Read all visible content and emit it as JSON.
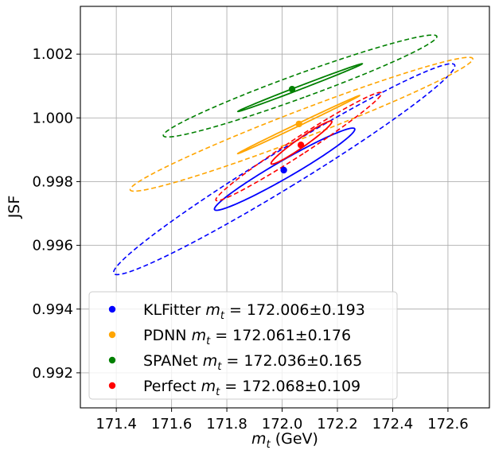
{
  "chart_data": {
    "type": "scatter",
    "xlabel_var": "m",
    "xlabel_sub": "t",
    "xlabel_unit": " (GeV)",
    "ylabel": "JSF",
    "xlim": [
      171.27,
      172.75
    ],
    "ylim": [
      0.9909,
      1.0035
    ],
    "x_ticks": [
      171.4,
      171.6,
      171.8,
      172.0,
      172.2,
      172.4,
      172.6
    ],
    "x_tick_labels": [
      "171.4",
      "171.6",
      "171.8",
      "172.0",
      "172.2",
      "172.4",
      "172.6"
    ],
    "y_ticks": [
      0.992,
      0.994,
      0.996,
      0.998,
      1.0,
      1.002
    ],
    "y_tick_labels": [
      "0.992",
      "0.994",
      "0.996",
      "0.998",
      "1.000",
      "1.002"
    ],
    "grid": true,
    "legend_position": "lower-left",
    "series": [
      {
        "method": "KLFitter",
        "value_text": "172.006±0.193",
        "color": "#0000ff",
        "point": {
          "x": 172.006,
          "y": 0.99836
        },
        "ellipse_1sigma": {
          "x_from": 171.755,
          "x_to": 172.263,
          "y_from": 0.9971,
          "y_to": 0.99968
        },
        "ellipse_2sigma": {
          "x_from": 171.39,
          "x_to": 172.625,
          "y_from": 0.99508,
          "y_to": 1.0017
        }
      },
      {
        "method": "PDNN",
        "value_text": "172.061±0.176",
        "color": "#ffa500",
        "point": {
          "x": 172.061,
          "y": 0.99981
        },
        "ellipse_1sigma": {
          "x_from": 171.84,
          "x_to": 172.28,
          "y_from": 0.99888,
          "y_to": 1.0007
        },
        "ellipse_2sigma": {
          "x_from": 171.45,
          "x_to": 172.69,
          "y_from": 0.9977,
          "y_to": 1.0019
        }
      },
      {
        "method": "SPANet",
        "value_text": "172.036±0.165",
        "color": "#008000",
        "point": {
          "x": 172.036,
          "y": 1.0009
        },
        "ellipse_1sigma": {
          "x_from": 171.84,
          "x_to": 172.29,
          "y_from": 1.0002,
          "y_to": 1.0017
        },
        "ellipse_2sigma": {
          "x_from": 171.57,
          "x_to": 172.56,
          "y_from": 0.9994,
          "y_to": 1.0026
        }
      },
      {
        "method": "Perfect",
        "value_text": "172.068±0.109",
        "color": "#ff0000",
        "point": {
          "x": 172.068,
          "y": 0.99915
        },
        "ellipse_1sigma": {
          "x_from": 171.96,
          "x_to": 172.18,
          "y_from": 0.99855,
          "y_to": 0.9999
        },
        "ellipse_2sigma": {
          "x_from": 171.76,
          "x_to": 172.36,
          "y_from": 0.9974,
          "y_to": 1.0008
        }
      }
    ]
  }
}
